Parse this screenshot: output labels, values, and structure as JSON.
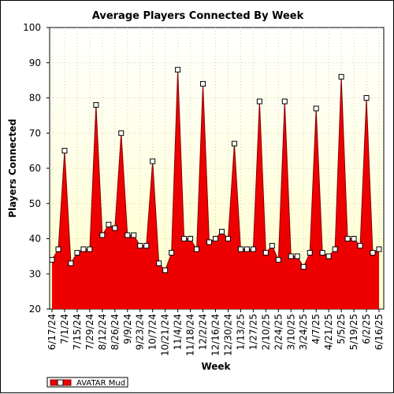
{
  "chart_data": {
    "type": "area",
    "title": "Average Players Connected By Week",
    "xlabel": "Week",
    "ylabel": "Players Connected",
    "ylim": [
      20,
      100
    ],
    "yticks": [
      20,
      30,
      40,
      50,
      60,
      70,
      80,
      90,
      100
    ],
    "grid": true,
    "legend_position": "bottom-left",
    "x_tick_labels": [
      "6/17/24",
      "7/1/24",
      "7/15/24",
      "7/29/24",
      "8/12/24",
      "8/26/24",
      "9/9/24",
      "9/23/24",
      "10/7/24",
      "10/21/24",
      "11/4/24",
      "11/18/24",
      "12/2/24",
      "12/16/24",
      "12/30/24",
      "1/13/25",
      "1/27/25",
      "2/10/25",
      "2/24/25",
      "3/10/25",
      "3/24/25",
      "4/7/25",
      "4/21/25",
      "5/5/25",
      "5/19/25",
      "6/2/25",
      "6/16/25"
    ],
    "x": [
      "6/17/24",
      "6/24/24",
      "7/1/24",
      "7/8/24",
      "7/15/24",
      "7/22/24",
      "7/29/24",
      "8/5/24",
      "8/12/24",
      "8/19/24",
      "8/26/24",
      "9/2/24",
      "9/9/24",
      "9/16/24",
      "9/23/24",
      "9/30/24",
      "10/7/24",
      "10/14/24",
      "10/21/24",
      "10/28/24",
      "11/4/24",
      "11/11/24",
      "11/18/24",
      "11/25/24",
      "12/2/24",
      "12/9/24",
      "12/16/24",
      "12/23/24",
      "12/30/24",
      "1/6/25",
      "1/13/25",
      "1/20/25",
      "1/27/25",
      "2/3/25",
      "2/10/25",
      "2/17/25",
      "2/24/25",
      "3/3/25",
      "3/10/25",
      "3/17/25",
      "3/24/25",
      "3/31/25",
      "4/7/25",
      "4/14/25",
      "4/21/25",
      "4/28/25",
      "5/5/25",
      "5/12/25",
      "5/19/25",
      "5/26/25",
      "6/2/25",
      "6/9/25",
      "6/16/25"
    ],
    "series": [
      {
        "name": "AVATAR Mud",
        "color": "#ee0000",
        "values": [
          34,
          37,
          65,
          33,
          36,
          37,
          37,
          78,
          41,
          44,
          43,
          70,
          41,
          41,
          38,
          38,
          62,
          33,
          31,
          36,
          88,
          40,
          40,
          37,
          84,
          39,
          40,
          42,
          40,
          67,
          37,
          37,
          37,
          79,
          36,
          38,
          34,
          79,
          35,
          35,
          32,
          36,
          77,
          36,
          35,
          37,
          86,
          40,
          40,
          38,
          80,
          36,
          37
        ]
      }
    ]
  },
  "colors": {
    "plot_background_top": "#ffffff",
    "plot_background_bottom": "#ffffcc",
    "grid": "#d2d2a6",
    "area_fill": "#ee0000",
    "area_line": "#880000",
    "marker_fill": "#ffffff"
  }
}
